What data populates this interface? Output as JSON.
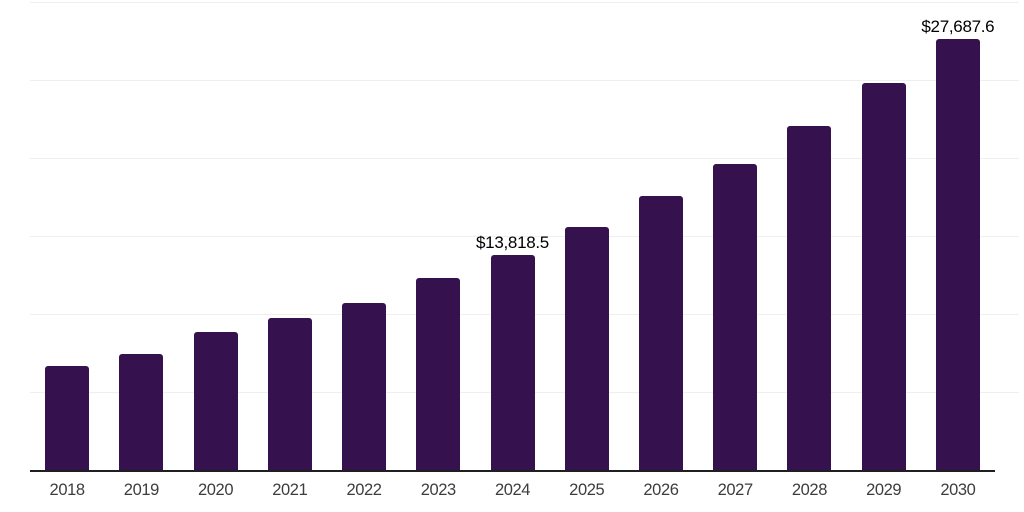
{
  "chart_data": {
    "type": "bar",
    "title": "",
    "xlabel": "",
    "ylabel": "",
    "categories": [
      "2018",
      "2019",
      "2020",
      "2021",
      "2022",
      "2023",
      "2024",
      "2025",
      "2026",
      "2027",
      "2028",
      "2029",
      "2030"
    ],
    "values": [
      6700,
      7500,
      8900,
      9800,
      10800,
      12350,
      13818.5,
      15650,
      17600,
      19650,
      22100,
      24900,
      27687.6
    ],
    "data_labels": [
      "",
      "",
      "",
      "",
      "",
      "",
      "$13,818.5",
      "",
      "",
      "",
      "",
      "",
      "$27,687.6"
    ],
    "ylim": [
      0,
      30000
    ],
    "gridline_step": 5000,
    "grid": true,
    "legend": "none",
    "y_axis_tick_labels_visible": false,
    "colors": {
      "bar": "#35124E",
      "axis_line": "#1f1f1f",
      "gridline": "#efefef",
      "tick_label": "#3d3d3d",
      "data_label": "#000000",
      "background": "#ffffff"
    }
  }
}
